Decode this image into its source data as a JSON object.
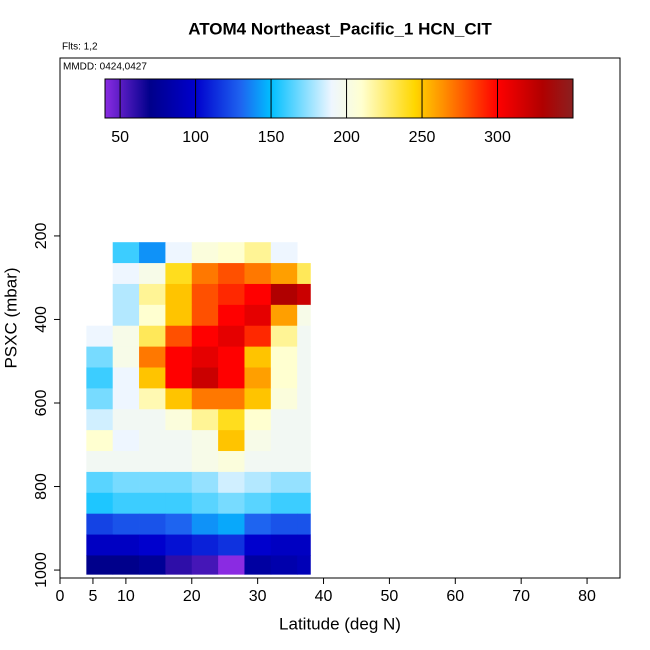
{
  "chart_data": {
    "type": "heatmap",
    "title": "ATOM4 Northeast_Pacific_1 HCN_CIT",
    "annotations": [
      "Flts: 1,2",
      "MMDD: 0424,0427"
    ],
    "xlabel": "Latitude (deg N)",
    "ylabel": "PSXC (mbar)",
    "xlim": [
      0,
      85
    ],
    "xticks": [
      0,
      5,
      10,
      20,
      30,
      40,
      50,
      60,
      70,
      80
    ],
    "ylim": [
      1019,
      -226
    ],
    "yticks": [
      200,
      400,
      600,
      800,
      1000
    ],
    "zlim": [
      40,
      350
    ],
    "zticks": [
      50,
      100,
      150,
      200,
      250,
      300
    ],
    "colorscale": [
      [
        40,
        "#8a2be2"
      ],
      [
        70,
        "#00008b"
      ],
      [
        100,
        "#0000cd"
      ],
      [
        130,
        "#1e64f0"
      ],
      [
        150,
        "#00bfff"
      ],
      [
        190,
        "#eef6ff"
      ],
      [
        210,
        "#ffffd0"
      ],
      [
        245,
        "#ffd700"
      ],
      [
        265,
        "#ff8c00"
      ],
      [
        300,
        "#ff0000"
      ],
      [
        330,
        "#b00000"
      ],
      [
        350,
        "#8b2020"
      ]
    ],
    "x_edges": [
      4,
      8,
      12,
      16,
      20,
      24,
      28,
      32,
      36,
      38
    ],
    "y_edges": [
      215,
      265,
      315,
      365,
      415,
      465,
      515,
      565,
      615,
      665,
      715,
      765,
      815,
      865,
      915,
      965,
      1010
    ],
    "z": [
      [
        null,
        160,
        140,
        190,
        205,
        210,
        220,
        190,
        null
      ],
      [
        null,
        190,
        200,
        240,
        270,
        280,
        270,
        260,
        230
      ],
      [
        null,
        180,
        220,
        250,
        280,
        290,
        300,
        330,
        320
      ],
      [
        null,
        180,
        210,
        250,
        280,
        300,
        310,
        260,
        200
      ],
      [
        190,
        200,
        230,
        280,
        300,
        310,
        290,
        220,
        195
      ],
      [
        170,
        200,
        270,
        300,
        310,
        300,
        250,
        210,
        195
      ],
      [
        160,
        190,
        250,
        300,
        320,
        300,
        260,
        210,
        195
      ],
      [
        170,
        190,
        215,
        250,
        270,
        270,
        250,
        205,
        195
      ],
      [
        185,
        195,
        195,
        205,
        220,
        240,
        210,
        195,
        195
      ],
      [
        210,
        190,
        195,
        195,
        200,
        250,
        200,
        195,
        195
      ],
      [
        195,
        195,
        195,
        195,
        200,
        205,
        195,
        195,
        195
      ],
      [
        165,
        170,
        170,
        170,
        175,
        185,
        180,
        175,
        175
      ],
      [
        155,
        160,
        160,
        160,
        165,
        170,
        165,
        160,
        160
      ],
      [
        120,
        125,
        125,
        130,
        140,
        145,
        130,
        125,
        125
      ],
      [
        95,
        95,
        100,
        105,
        110,
        115,
        100,
        95,
        95
      ],
      [
        70,
        70,
        75,
        60,
        55,
        40,
        80,
        85,
        90
      ]
    ]
  }
}
